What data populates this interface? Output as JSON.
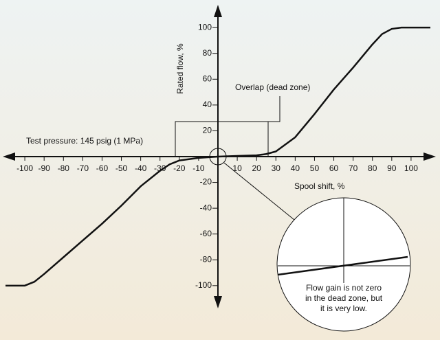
{
  "chart_data": {
    "type": "line",
    "x": [
      -110,
      -100,
      -95,
      -90,
      -80,
      -70,
      -60,
      -50,
      -40,
      -30,
      -25,
      -20,
      -10,
      0,
      10,
      20,
      25,
      30,
      40,
      50,
      60,
      70,
      80,
      85,
      90,
      95,
      110
    ],
    "series": [
      {
        "color": "#111111",
        "values": [
          -100,
          -100,
          -97,
          -91,
          -78,
          -65,
          -52,
          -38,
          -23,
          -11,
          -6,
          -3,
          -1,
          0,
          0.5,
          1,
          2,
          4,
          15,
          33,
          52,
          69,
          87,
          95,
          99,
          100,
          100
        ]
      }
    ],
    "xlim": [
      -110,
      110
    ],
    "ylim": [
      -115,
      115
    ],
    "xticks": [
      -100,
      -90,
      -80,
      -70,
      -60,
      -50,
      -40,
      -30,
      -20,
      -10,
      10,
      20,
      30,
      40,
      50,
      60,
      70,
      80,
      90,
      100
    ],
    "yticks": [
      100,
      80,
      60,
      40,
      20,
      -20,
      -40,
      -60,
      -80,
      -100
    ],
    "x_label": "Spool shift, %",
    "y_label": "Rated flow, %",
    "annotations": {
      "test_pressure": "Test pressure: 145 psig (1 MPa)",
      "overlap": "Overlap (dead zone)",
      "inset": [
        "Flow gain is not zero",
        "in the dead zone, but",
        "it is very low."
      ]
    }
  }
}
